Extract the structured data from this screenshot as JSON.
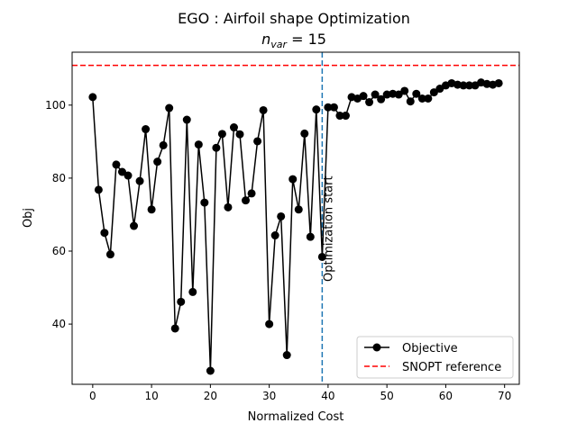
{
  "chart_data": {
    "type": "line",
    "title": "EGO : Airfoil shape Optimization",
    "subtitle_base": "n",
    "subtitle_sub": "var",
    "subtitle_rest": " = 15",
    "xlabel": "Normalized Cost",
    "ylabel": "Obj",
    "xlim": [
      -3.5,
      72.5
    ],
    "ylim": [
      23.5,
      114.5
    ],
    "xticks": [
      0,
      10,
      20,
      30,
      40,
      50,
      60,
      70
    ],
    "yticks": [
      40,
      60,
      80,
      100
    ],
    "grid": false,
    "legend_position": "lower right",
    "series": [
      {
        "name": "Objective",
        "color": "#000000",
        "marker": "circle",
        "x": [
          0,
          1,
          2,
          3,
          4,
          5,
          6,
          7,
          8,
          9,
          10,
          11,
          12,
          13,
          14,
          15,
          16,
          17,
          18,
          19,
          20,
          21,
          22,
          23,
          24,
          25,
          26,
          27,
          28,
          29,
          30,
          31,
          32,
          33,
          34,
          35,
          36,
          37,
          38,
          39,
          40,
          41,
          42,
          43,
          44,
          45,
          46,
          47,
          48,
          49,
          50,
          51,
          52,
          53,
          54,
          55,
          56,
          57,
          58,
          59,
          60,
          61,
          62,
          63,
          64,
          65,
          66,
          67,
          68,
          69
        ],
        "y": [
          102.2,
          76.8,
          65.0,
          59.1,
          83.7,
          81.7,
          80.7,
          66.9,
          79.2,
          93.4,
          71.4,
          84.5,
          89.0,
          99.2,
          38.8,
          46.1,
          96.0,
          48.8,
          89.2,
          73.3,
          27.2,
          88.3,
          92.1,
          72.0,
          93.9,
          92.0,
          73.9,
          75.8,
          90.1,
          98.6,
          40.0,
          64.3,
          69.5,
          31.5,
          79.7,
          71.4,
          92.2,
          63.9,
          98.8,
          58.4,
          99.4,
          99.4,
          97.1,
          97.1,
          102.2,
          101.8,
          102.5,
          100.8,
          102.9,
          101.6,
          102.9,
          103.1,
          102.9,
          103.9,
          101.0,
          103.1,
          101.8,
          101.8,
          103.5,
          104.5,
          105.4,
          106.0,
          105.6,
          105.4,
          105.4,
          105.4,
          106.2,
          105.8,
          105.6,
          106.0
        ]
      },
      {
        "name": "SNOPT reference",
        "color": "#ff0000",
        "style": "dashed",
        "y_constant": 110.9
      }
    ],
    "annotations": [
      {
        "text": "Optimization start",
        "x": 39,
        "color": "#1f77b4",
        "style": "dashed"
      }
    ]
  }
}
